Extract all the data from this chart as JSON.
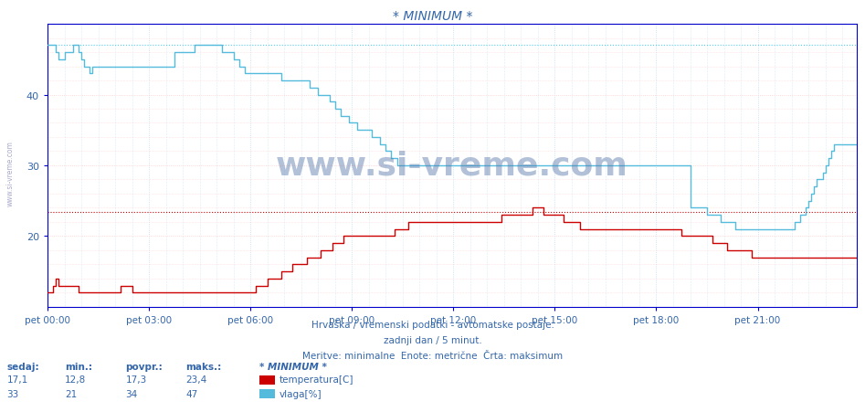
{
  "title": "* MINIMUM *",
  "bg_color": "#ffffff",
  "line_color_temp": "#cc0000",
  "line_color_vlaga": "#55bbdd",
  "dotted_line_temp_color": "#cc0000",
  "dotted_line_vlaga_color": "#55ccee",
  "grid_color_v": "#bbddee",
  "grid_color_h": "#ffcccc",
  "ylim": [
    10,
    50
  ],
  "yticks": [
    20,
    30,
    40
  ],
  "text_color": "#3366aa",
  "xticklabels": [
    "pet 00:00",
    "pet 03:00",
    "pet 06:00",
    "pet 09:00",
    "pet 12:00",
    "pet 15:00",
    "pet 18:00",
    "pet 21:00"
  ],
  "hline_temp": 23.4,
  "hline_vlaga": 47.0,
  "subtitle1": "Hrvaška / vremenski podatki - avtomatske postaje.",
  "subtitle2": "zadnji dan / 5 minut.",
  "subtitle3": "Meritve: minimalne  Enote: metrične  Črta: maksimum",
  "legend_title": "* MINIMUM *",
  "legend_temp_label": "temperatura[C]",
  "legend_vlaga_label": "vlaga[%]",
  "sedaj_label": "sedaj:",
  "min_label": "min.:",
  "povpr_label": "povpr.:",
  "maks_label": "maks.:",
  "temp_sedaj": "17,1",
  "temp_min": "12,8",
  "temp_povpr": "17,3",
  "temp_maks": "23,4",
  "vlaga_sedaj": "33",
  "vlaga_min": "21",
  "vlaga_povpr": "34",
  "vlaga_maks": "47",
  "watermark": "www.si-vreme.com",
  "sidebar": "www.si-vreme.com",
  "n_points": 288,
  "temp_data": [
    12,
    12,
    13,
    14,
    13,
    13,
    13,
    13,
    13,
    13,
    13,
    12,
    12,
    12,
    12,
    12,
    12,
    12,
    12,
    12,
    12,
    12,
    12,
    12,
    12,
    12,
    13,
    13,
    13,
    13,
    12,
    12,
    12,
    12,
    12,
    12,
    12,
    12,
    12,
    12,
    12,
    12,
    12,
    12,
    12,
    12,
    12,
    12,
    12,
    12,
    12,
    12,
    12,
    12,
    12,
    12,
    12,
    12,
    12,
    12,
    12,
    12,
    12,
    12,
    12,
    12,
    12,
    12,
    12,
    12,
    12,
    12,
    12,
    12,
    13,
    13,
    13,
    13,
    14,
    14,
    14,
    14,
    14,
    15,
    15,
    15,
    15,
    16,
    16,
    16,
    16,
    16,
    17,
    17,
    17,
    17,
    17,
    18,
    18,
    18,
    18,
    19,
    19,
    19,
    19,
    20,
    20,
    20,
    20,
    20,
    20,
    20,
    20,
    20,
    20,
    20,
    20,
    20,
    20,
    20,
    20,
    20,
    20,
    21,
    21,
    21,
    21,
    21,
    22,
    22,
    22,
    22,
    22,
    22,
    22,
    22,
    22,
    22,
    22,
    22,
    22,
    22,
    22,
    22,
    22,
    22,
    22,
    22,
    22,
    22,
    22,
    22,
    22,
    22,
    22,
    22,
    22,
    22,
    22,
    22,
    22,
    23,
    23,
    23,
    23,
    23,
    23,
    23,
    23,
    23,
    23,
    23,
    24,
    24,
    24,
    24,
    23,
    23,
    23,
    23,
    23,
    23,
    23,
    22,
    22,
    22,
    22,
    22,
    22,
    21,
    21,
    21,
    21,
    21,
    21,
    21,
    21,
    21,
    21,
    21,
    21,
    21,
    21,
    21,
    21,
    21,
    21,
    21,
    21,
    21,
    21,
    21,
    21,
    21,
    21,
    21,
    21,
    21,
    21,
    21,
    21,
    21,
    21,
    21,
    21,
    20,
    20,
    20,
    20,
    20,
    20,
    20,
    20,
    20,
    20,
    20,
    19,
    19,
    19,
    19,
    19,
    18,
    18,
    18,
    18,
    18,
    18,
    18,
    18,
    18,
    17,
    17,
    17,
    17,
    17,
    17,
    17,
    17,
    17,
    17,
    17,
    17,
    17,
    17,
    17,
    17,
    17,
    17,
    17,
    17,
    17,
    17,
    17,
    17,
    17,
    17,
    17,
    17,
    17,
    17,
    17,
    17,
    17,
    17,
    17,
    17,
    17,
    17
  ],
  "vlaga_data": [
    47,
    47,
    47,
    46,
    45,
    45,
    46,
    46,
    46,
    47,
    47,
    46,
    45,
    44,
    44,
    43,
    44,
    44,
    44,
    44,
    44,
    44,
    44,
    44,
    44,
    44,
    44,
    44,
    44,
    44,
    44,
    44,
    44,
    44,
    44,
    44,
    44,
    44,
    44,
    44,
    44,
    44,
    44,
    44,
    44,
    46,
    46,
    46,
    46,
    46,
    46,
    46,
    47,
    47,
    47,
    47,
    47,
    47,
    47,
    47,
    47,
    47,
    46,
    46,
    46,
    46,
    45,
    45,
    44,
    44,
    43,
    43,
    43,
    43,
    43,
    43,
    43,
    43,
    43,
    43,
    43,
    43,
    43,
    42,
    42,
    42,
    42,
    42,
    42,
    42,
    42,
    42,
    42,
    41,
    41,
    41,
    40,
    40,
    40,
    40,
    39,
    39,
    38,
    38,
    37,
    37,
    37,
    36,
    36,
    36,
    35,
    35,
    35,
    35,
    35,
    34,
    34,
    34,
    33,
    33,
    32,
    32,
    31,
    31,
    30,
    30,
    30,
    30,
    30,
    30,
    30,
    30,
    30,
    30,
    30,
    30,
    30,
    30,
    30,
    30,
    30,
    30,
    30,
    30,
    30,
    30,
    30,
    30,
    30,
    30,
    30,
    30,
    30,
    30,
    30,
    30,
    30,
    30,
    30,
    30,
    30,
    30,
    30,
    30,
    30,
    30,
    30,
    30,
    30,
    30,
    30,
    30,
    30,
    30,
    30,
    30,
    30,
    30,
    30,
    30,
    30,
    30,
    30,
    30,
    30,
    30,
    30,
    30,
    30,
    30,
    30,
    30,
    30,
    30,
    30,
    30,
    30,
    30,
    30,
    30,
    30,
    30,
    30,
    30,
    30,
    30,
    30,
    30,
    30,
    30,
    30,
    30,
    30,
    30,
    30,
    30,
    30,
    30,
    30,
    30,
    30,
    30,
    30,
    30,
    30,
    30,
    30,
    30,
    24,
    24,
    24,
    24,
    24,
    24,
    23,
    23,
    23,
    23,
    23,
    22,
    22,
    22,
    22,
    22,
    21,
    21,
    21,
    21,
    21,
    21,
    21,
    21,
    21,
    21,
    21,
    21,
    21,
    21,
    21,
    21,
    21,
    21,
    21,
    21,
    21,
    22,
    22,
    23,
    23,
    24,
    25,
    26,
    27,
    28,
    28,
    29,
    30,
    31,
    32,
    33,
    33,
    33,
    33,
    33,
    33,
    33,
    33,
    33
  ]
}
